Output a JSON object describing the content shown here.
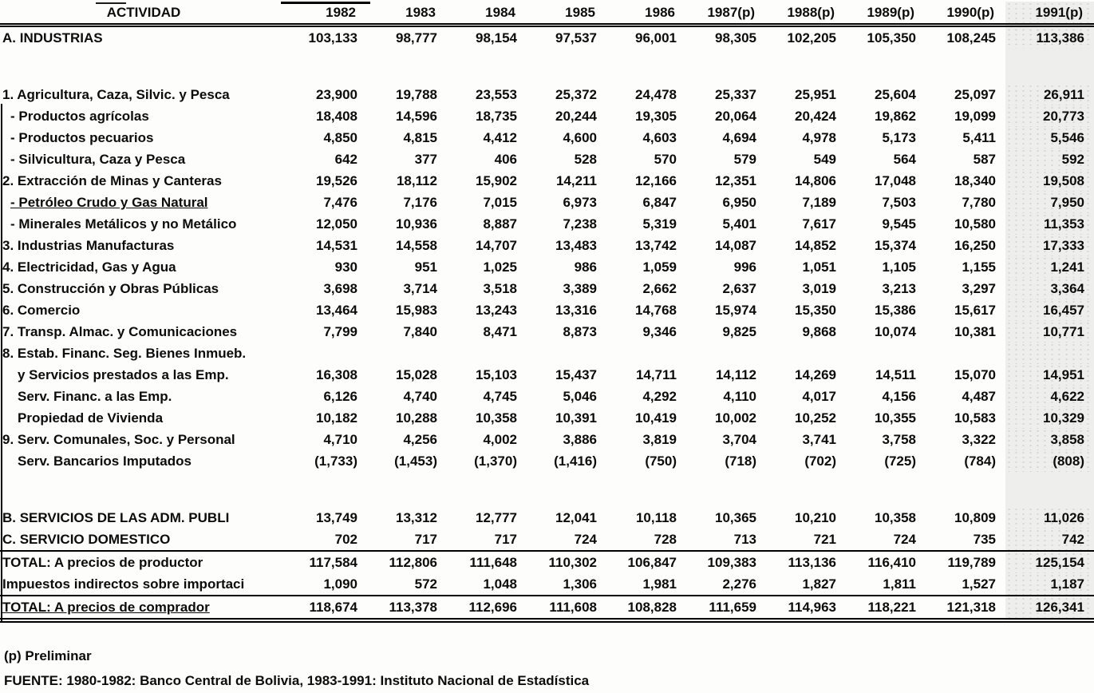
{
  "table": {
    "col_header": "ACTIVIDAD",
    "years": [
      "1982",
      "1983",
      "1984",
      "1985",
      "1986",
      "1987(p)",
      "1988(p)",
      "1989(p)",
      "1990(p)",
      "1991(p)"
    ],
    "rows": [
      {
        "label": "A. INDUSTRIAS",
        "indent": 0,
        "type": "section",
        "values": [
          "103,133",
          "98,777",
          "98,154",
          "97,537",
          "96,001",
          "98,305",
          "102,205",
          "105,350",
          "108,245",
          "113,386"
        ]
      },
      {
        "label": "",
        "type": "spacer",
        "values": []
      },
      {
        "label": "1. Agricultura, Caza, Silvic. y Pesca",
        "indent": 0,
        "type": "item",
        "values": [
          "23,900",
          "19,788",
          "23,553",
          "25,372",
          "24,478",
          "25,337",
          "25,951",
          "25,604",
          "25,097",
          "26,911"
        ]
      },
      {
        "label": "- Productos agrícolas",
        "indent": 1,
        "type": "sub",
        "values": [
          "18,408",
          "14,596",
          "18,735",
          "20,244",
          "19,305",
          "20,064",
          "20,424",
          "19,862",
          "19,099",
          "20,773"
        ]
      },
      {
        "label": "- Productos pecuarios",
        "indent": 1,
        "type": "sub",
        "values": [
          "4,850",
          "4,815",
          "4,412",
          "4,600",
          "4,603",
          "4,694",
          "4,978",
          "5,173",
          "5,411",
          "5,546"
        ]
      },
      {
        "label": "- Silvicultura, Caza y Pesca",
        "indent": 1,
        "type": "sub",
        "values": [
          "642",
          "377",
          "406",
          "528",
          "570",
          "579",
          "549",
          "564",
          "587",
          "592"
        ]
      },
      {
        "label": "2. Extracción de Minas y Canteras",
        "indent": 0,
        "type": "item",
        "values": [
          "19,526",
          "18,112",
          "15,902",
          "14,211",
          "12,166",
          "12,351",
          "14,806",
          "17,048",
          "18,340",
          "19,508"
        ]
      },
      {
        "label": "- Petróleo Crudo y Gas Natural",
        "indent": 1,
        "type": "sub",
        "underline": true,
        "values": [
          "7,476",
          "7,176",
          "7,015",
          "6,973",
          "6,847",
          "6,950",
          "7,189",
          "7,503",
          "7,780",
          "7,950"
        ]
      },
      {
        "label": "- Minerales Metálicos y no Metálico",
        "indent": 1,
        "type": "sub",
        "values": [
          "12,050",
          "10,936",
          "8,887",
          "7,238",
          "5,319",
          "5,401",
          "7,617",
          "9,545",
          "10,580",
          "11,353"
        ]
      },
      {
        "label": "3. Industrias Manufacturas",
        "indent": 0,
        "type": "item",
        "values": [
          "14,531",
          "14,558",
          "14,707",
          "13,483",
          "13,742",
          "14,087",
          "14,852",
          "15,374",
          "16,250",
          "17,333"
        ]
      },
      {
        "label": "4. Electricidad, Gas y Agua",
        "indent": 0,
        "type": "item",
        "values": [
          "930",
          "951",
          "1,025",
          "986",
          "1,059",
          "996",
          "1,051",
          "1,105",
          "1,155",
          "1,241"
        ]
      },
      {
        "label": "5. Construcción y Obras Públicas",
        "indent": 0,
        "type": "item",
        "values": [
          "3,698",
          "3,714",
          "3,518",
          "3,389",
          "2,662",
          "2,637",
          "3,019",
          "3,213",
          "3,297",
          "3,364"
        ]
      },
      {
        "label": "6. Comercio",
        "indent": 0,
        "type": "item",
        "values": [
          "13,464",
          "15,983",
          "13,243",
          "13,316",
          "14,768",
          "15,974",
          "15,350",
          "15,386",
          "15,617",
          "16,457"
        ]
      },
      {
        "label": "7. Transp. Almac. y Comunicaciones",
        "indent": 0,
        "type": "item",
        "values": [
          "7,799",
          "7,840",
          "8,471",
          "8,873",
          "9,346",
          "9,825",
          "9,868",
          "10,074",
          "10,381",
          "10,771"
        ]
      },
      {
        "label": "8. Estab. Financ. Seg. Bienes Inmueb.",
        "indent": 0,
        "type": "item",
        "values": [
          "",
          "",
          "",
          "",
          "",
          "",
          "",
          "",
          "",
          ""
        ]
      },
      {
        "label": "y Servicios prestados a las Emp.",
        "indent": 2,
        "type": "sub",
        "values": [
          "16,308",
          "15,028",
          "15,103",
          "15,437",
          "14,711",
          "14,112",
          "14,269",
          "14,511",
          "15,070",
          "14,951"
        ]
      },
      {
        "label": "Serv. Financ. a las Emp.",
        "indent": 2,
        "type": "sub",
        "values": [
          "6,126",
          "4,740",
          "4,745",
          "5,046",
          "4,292",
          "4,110",
          "4,017",
          "4,156",
          "4,487",
          "4,622"
        ]
      },
      {
        "label": "Propiedad de Vivienda",
        "indent": 2,
        "type": "sub",
        "values": [
          "10,182",
          "10,288",
          "10,358",
          "10,391",
          "10,419",
          "10,002",
          "10,252",
          "10,355",
          "10,583",
          "10,329"
        ]
      },
      {
        "label": "9. Serv. Comunales, Soc. y Personal",
        "indent": 0,
        "type": "item",
        "values": [
          "4,710",
          "4,256",
          "4,002",
          "3,886",
          "3,819",
          "3,704",
          "3,741",
          "3,758",
          "3,322",
          "3,858"
        ]
      },
      {
        "label": "Serv. Bancarios Imputados",
        "indent": 2,
        "type": "sub",
        "values": [
          "(1,733)",
          "(1,453)",
          "(1,370)",
          "(1,416)",
          "(750)",
          "(718)",
          "(702)",
          "(725)",
          "(784)",
          "(808)"
        ]
      },
      {
        "label": "",
        "type": "spacer",
        "values": []
      },
      {
        "label": "B. SERVICIOS DE LAS ADM. PUBLI",
        "indent": 0,
        "type": "section",
        "values": [
          "13,749",
          "13,312",
          "12,777",
          "12,041",
          "10,118",
          "10,365",
          "10,210",
          "10,358",
          "10,809",
          "11,026"
        ]
      },
      {
        "label": "C. SERVICIO DOMESTICO",
        "indent": 0,
        "type": "section",
        "values": [
          "702",
          "717",
          "717",
          "724",
          "728",
          "713",
          "721",
          "724",
          "735",
          "742"
        ]
      },
      {
        "label": "TOTAL: A precios de productor",
        "indent": 0,
        "type": "total",
        "values": [
          "117,584",
          "112,806",
          "111,648",
          "110,302",
          "106,847",
          "109,383",
          "113,136",
          "116,410",
          "119,789",
          "125,154"
        ]
      },
      {
        "label": "Impuestos indirectos sobre importaci",
        "indent": 0,
        "type": "item",
        "values": [
          "1,090",
          "572",
          "1,048",
          "1,306",
          "1,981",
          "2,276",
          "1,827",
          "1,811",
          "1,527",
          "1,187"
        ]
      },
      {
        "label": "TOTAL: A precios de comprador",
        "indent": 0,
        "type": "grand-total",
        "underline": true,
        "values": [
          "118,674",
          "113,378",
          "112,696",
          "111,608",
          "108,828",
          "111,659",
          "114,963",
          "118,221",
          "121,318",
          "126,341"
        ]
      }
    ]
  },
  "footer": {
    "note": "(p) Preliminar",
    "source": "FUENTE: 1980-1982: Banco Central de Bolivia, 1983-1991: Instituto Nacional de Estadística"
  }
}
